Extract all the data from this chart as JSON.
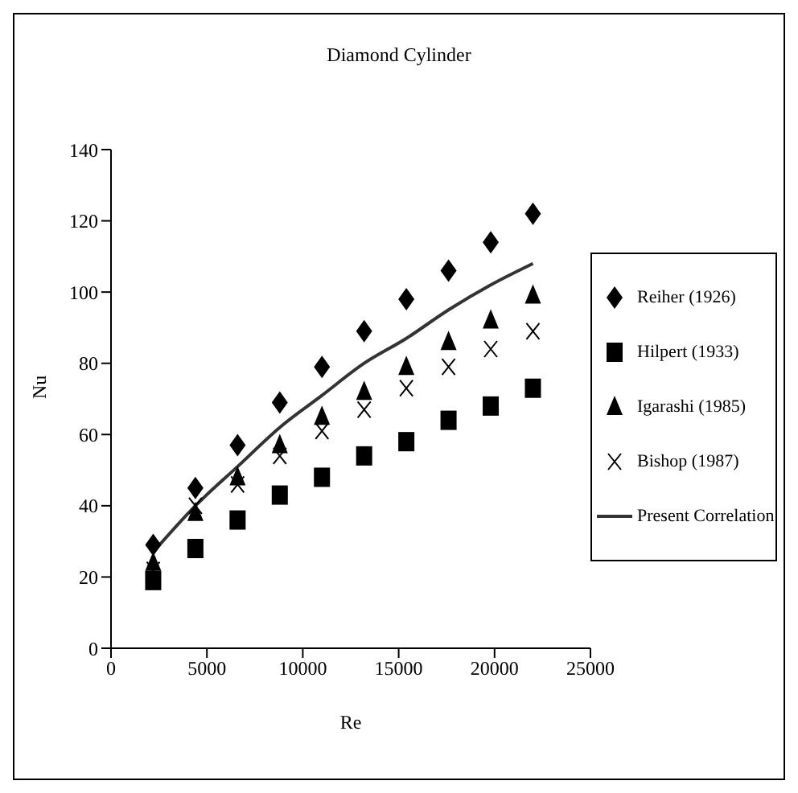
{
  "chart_data": {
    "type": "scatter",
    "title": "Diamond Cylinder",
    "xlabel": "Re",
    "ylabel": "Nu",
    "x": [
      2200,
      4400,
      6600,
      8800,
      11000,
      13200,
      15400,
      17600,
      19800,
      22000
    ],
    "series": [
      {
        "name": "Reiher (1926)",
        "color": "#000000",
        "marker": "diamond",
        "values": [
          29,
          45,
          57,
          69,
          79,
          89,
          98,
          106,
          114,
          122
        ]
      },
      {
        "name": "Hilpert (1933)",
        "color": "#000000",
        "marker": "square",
        "values": [
          19,
          28,
          36,
          43,
          48,
          54,
          58,
          64,
          68,
          73
        ]
      },
      {
        "name": "Igarashi (1985)",
        "color": "#000000",
        "marker": "triangle",
        "values": [
          24,
          38,
          48,
          57,
          65,
          72,
          79,
          86,
          92,
          99
        ]
      },
      {
        "name": "Bishop (1987)",
        "color": "#000000",
        "marker": "cross",
        "values": [
          22,
          40,
          46,
          54,
          61,
          67,
          73,
          79,
          84,
          89
        ]
      },
      {
        "name": "Present Correlation",
        "type": "line",
        "color": "#333333",
        "marker": "none",
        "line_style": "solid",
        "values": [
          27,
          40,
          51,
          62,
          71,
          80,
          87,
          95,
          102,
          108
        ]
      }
    ],
    "xlim": [
      0,
      25000
    ],
    "xticks": [
      0,
      5000,
      10000,
      15000,
      20000,
      25000
    ],
    "ylim": [
      0,
      140
    ],
    "yticks": [
      0,
      20,
      40,
      60,
      80,
      100,
      120,
      140
    ],
    "grid": false,
    "legend": "right"
  }
}
